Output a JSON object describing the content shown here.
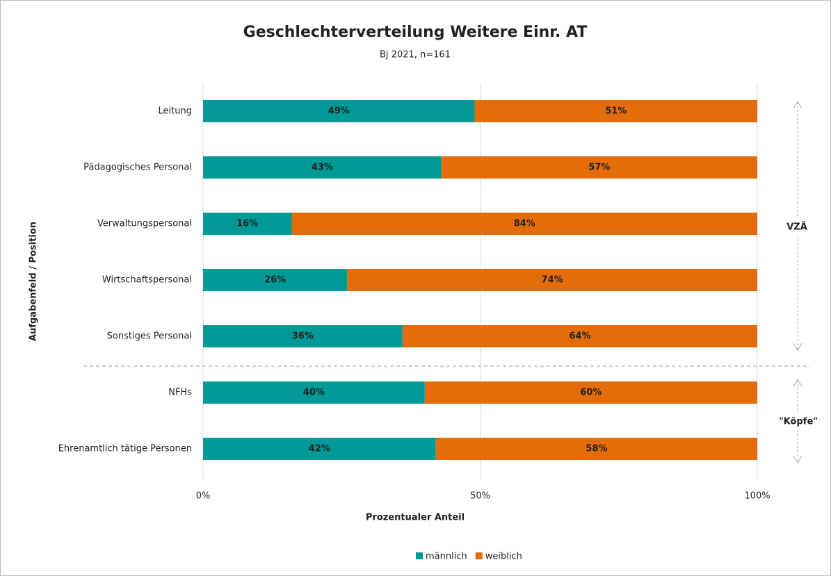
{
  "chart_data": {
    "type": "stacked_bar_horizontal",
    "title": "Geschlechterverteilung Weitere Einr. AT",
    "subtitle": "Bj 2021, n=161",
    "xlabel": "Prozentualer Anteil",
    "ylabel": "Aufgabenfeld / Position",
    "categories": [
      "Leitung",
      "Pädagogisches Personal",
      "Verwaltungspersonal",
      "Wirtschaftspersonal",
      "Sonstiges Personal",
      "NFHs",
      "Ehrenamtlich tätige Personen"
    ],
    "series": [
      {
        "name": "männlich",
        "color": "#009a96",
        "values": [
          49,
          43,
          16,
          26,
          36,
          40,
          42
        ],
        "value_labels": [
          "49%",
          "43%",
          "16%",
          "26%",
          "36%",
          "40%",
          "42%"
        ]
      },
      {
        "name": "weiblich",
        "color": "#e46c0a",
        "values": [
          51,
          57,
          84,
          74,
          64,
          60,
          58
        ],
        "value_labels": [
          "51%",
          "57%",
          "84%",
          "74%",
          "64%",
          "60%",
          "58%"
        ]
      }
    ],
    "xlim": [
      0,
      100
    ],
    "xticks": [
      {
        "value": 0,
        "label": "0%"
      },
      {
        "value": 50,
        "label": "50%"
      },
      {
        "value": 100,
        "label": "100%"
      }
    ],
    "grid": true,
    "legend": "bottom",
    "annotations": [
      "VZÄ",
      "\"Köpfe\""
    ]
  }
}
